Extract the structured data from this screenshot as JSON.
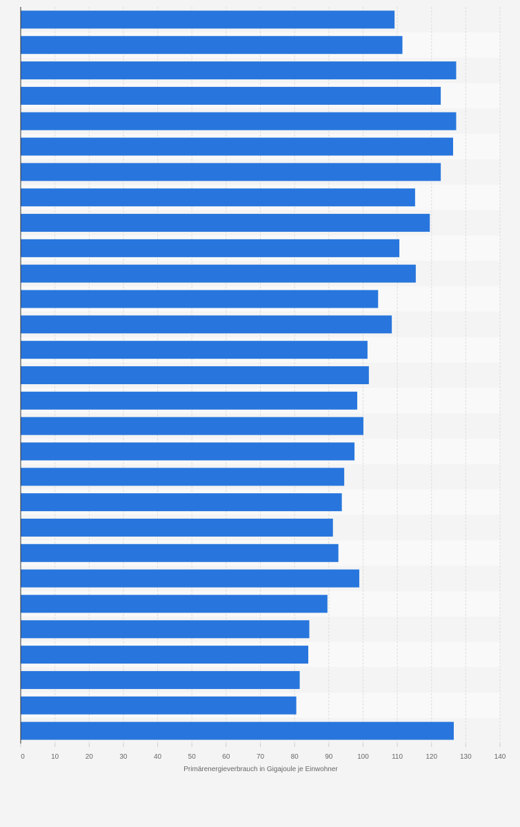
{
  "chart_data": {
    "type": "bar",
    "orientation": "horizontal",
    "xlabel": "Primärenergieverbrauch in Gigajoule je Einwohner",
    "xlim": [
      0,
      140
    ],
    "x_ticks": [
      0,
      10,
      20,
      30,
      40,
      50,
      60,
      70,
      80,
      90,
      100,
      110,
      120,
      130,
      140
    ],
    "x_tick_labels": [
      "0",
      "10",
      "20",
      "30",
      "40",
      "50",
      "60",
      "70",
      "80",
      "90",
      "100",
      "110",
      "120",
      "130",
      "140"
    ],
    "grid": true,
    "bar_color": "#2876dd",
    "values": [
      109.2,
      111.5,
      127.2,
      122.7,
      127.2,
      126.3,
      122.7,
      115.2,
      119.5,
      110.6,
      115.4,
      104.4,
      108.4,
      101.3,
      101.7,
      98.3,
      100.1,
      97.5,
      94.5,
      93.8,
      91.2,
      92.8,
      98.9,
      89.6,
      84.3,
      84.0,
      81.5,
      80.5,
      126.5
    ]
  }
}
